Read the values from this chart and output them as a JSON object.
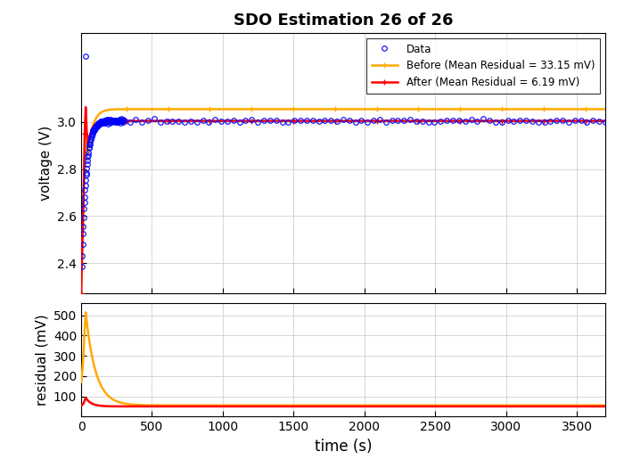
{
  "title": "SDO Estimation 26 of 26",
  "xlabel": "time (s)",
  "ylabel_top": "voltage (V)",
  "ylabel_bottom": "residual (mV)",
  "legend_data": "Data",
  "legend_before": "Before (Mean Residual = 33.15 mV)",
  "legend_after": "After (Mean Residual = 6.19 mV)",
  "data_color": "#0000ff",
  "before_color": "#ffaa00",
  "after_color": "#ff0000",
  "V_low": 2.27,
  "V_ss_after": 3.005,
  "V_ss_before": 3.055,
  "V_spike": 3.28,
  "tau_data": 30,
  "tau_before": 35,
  "tau_after": 25,
  "t_max": 3700,
  "res_before_peak": 530,
  "res_after_peak": 95,
  "res_before_ss": 55,
  "res_after_ss": 50,
  "res_tau_before": 70,
  "res_tau_after": 40,
  "background_color": "#ffffff",
  "grid_color": "#d0d0d0"
}
